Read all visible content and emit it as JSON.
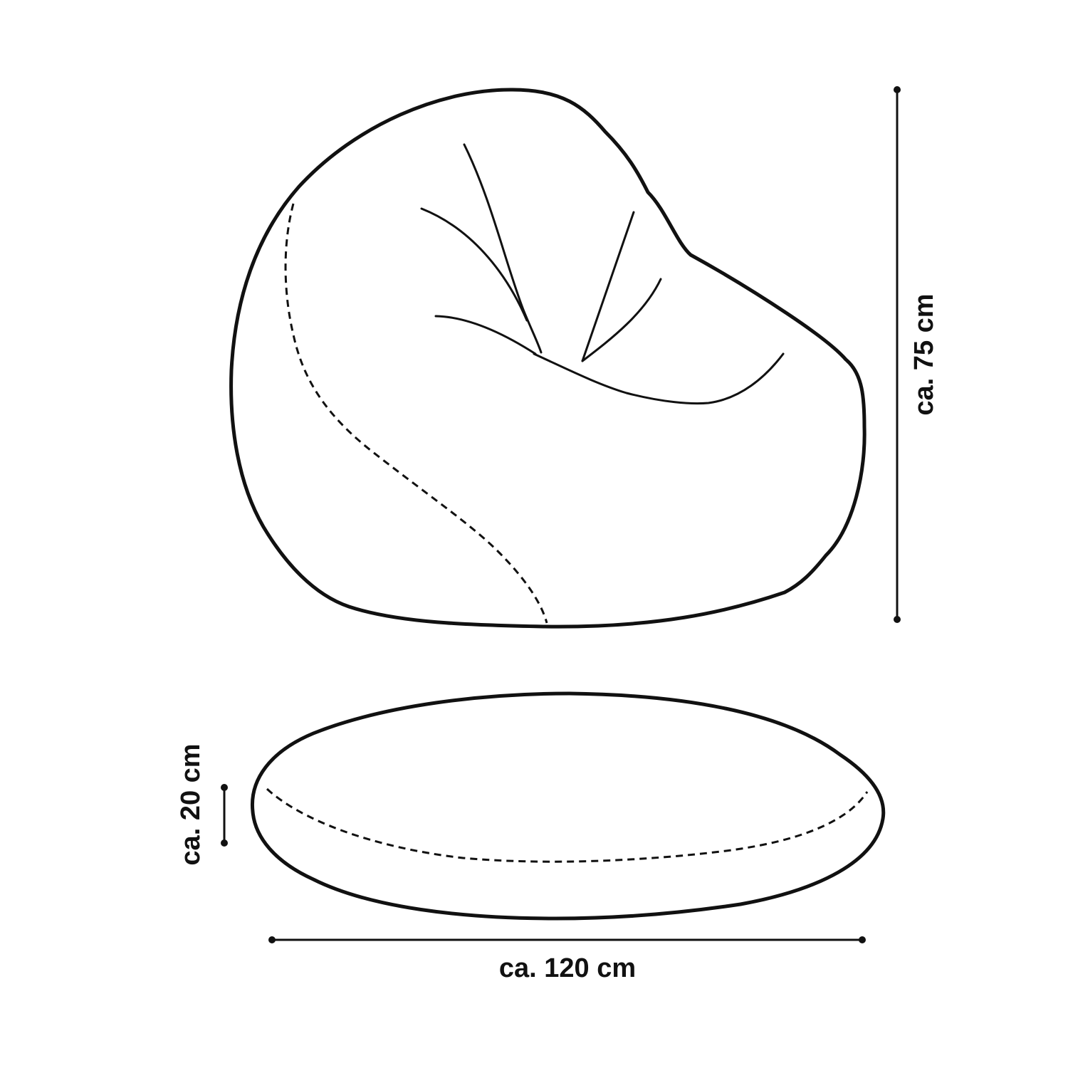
{
  "dimensions": {
    "height": "ca. 75 cm",
    "thickness": "ca. 20 cm",
    "width": "ca. 120 cm"
  },
  "colors": {
    "line": "#111111",
    "background": "#ffffff"
  }
}
